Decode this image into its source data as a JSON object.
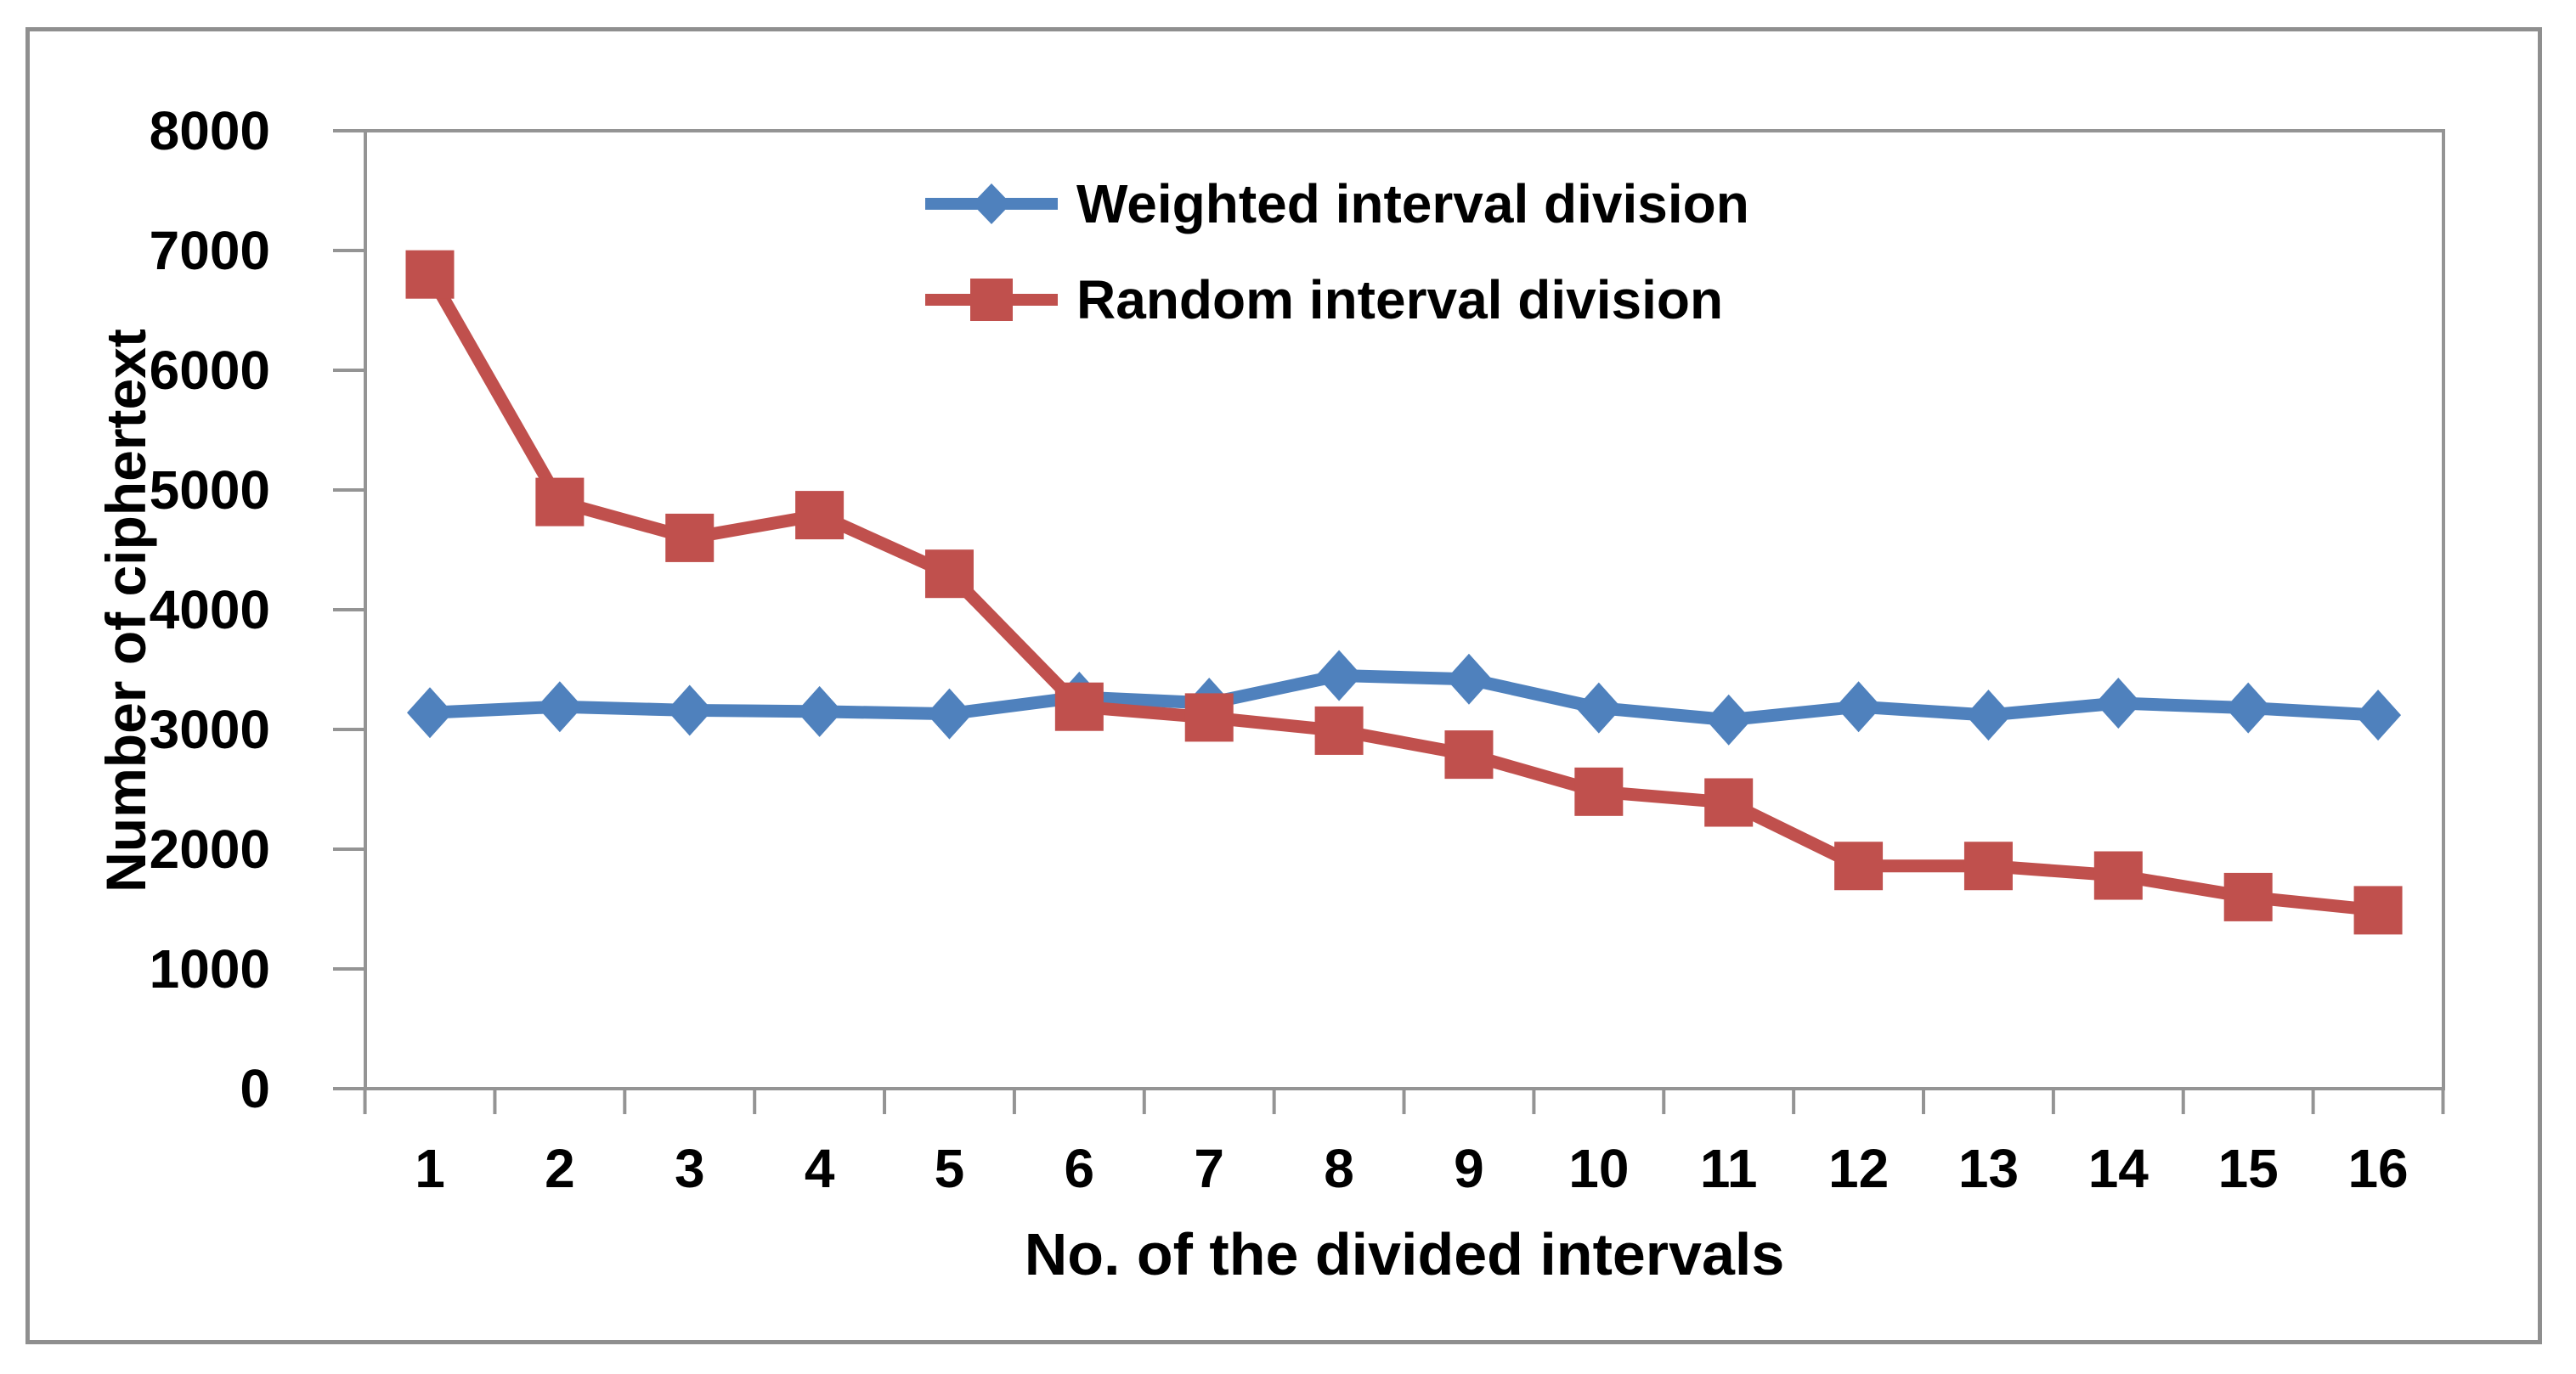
{
  "chart_data": {
    "type": "line",
    "categories": [
      1,
      2,
      3,
      4,
      5,
      6,
      7,
      8,
      9,
      10,
      11,
      12,
      13,
      14,
      15,
      16
    ],
    "series": [
      {
        "name": "Weighted interval division",
        "color": "#4F81BD",
        "marker": "diamond",
        "values": [
          3140,
          3190,
          3160,
          3150,
          3130,
          3270,
          3220,
          3450,
          3420,
          3180,
          3080,
          3190,
          3120,
          3220,
          3180,
          3120
        ]
      },
      {
        "name": "Random interval division",
        "color": "#C0504D",
        "marker": "square",
        "values": [
          6800,
          4900,
          4600,
          4790,
          4300,
          3190,
          3100,
          2990,
          2790,
          2480,
          2390,
          1860,
          1860,
          1780,
          1600,
          1490
        ]
      }
    ],
    "xlabel": "No. of the divided intervals",
    "ylabel": "Number of ciphertext",
    "ylim": [
      0,
      8000
    ],
    "yticks": [
      0,
      1000,
      2000,
      3000,
      4000,
      5000,
      6000,
      7000,
      8000
    ],
    "legend_position": "top-center, stacked rows",
    "grid": false
  },
  "colors": {
    "axis_line": "#949494",
    "figure_border": "#8F8F8F",
    "text": "#000000"
  }
}
